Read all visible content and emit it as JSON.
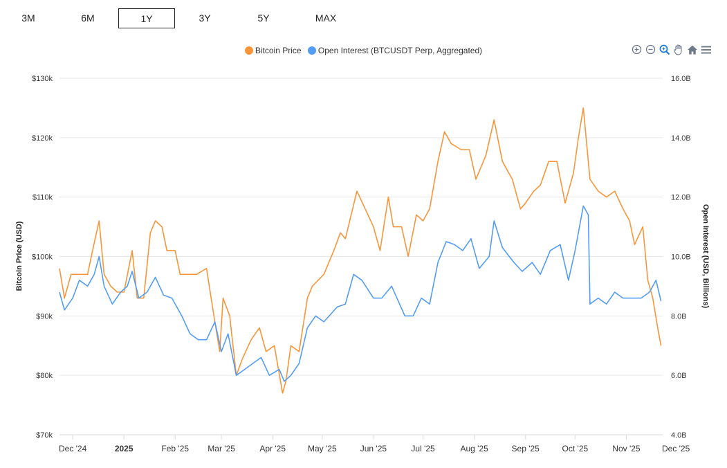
{
  "ranges": {
    "items": [
      "3M",
      "6M",
      "1Y",
      "3Y",
      "5Y",
      "MAX"
    ],
    "active": "1Y"
  },
  "toolbar": {
    "icons": [
      "zoom-in-icon",
      "zoom-out-icon",
      "zoom-select-icon",
      "pan-hand-icon",
      "home-reset-icon",
      "menu-icon"
    ]
  },
  "colors": {
    "price": "#F7953A",
    "oi": "#529CF5",
    "grid": "#e6e6e6"
  },
  "chart_data": {
    "type": "line",
    "legend_position": "top-center",
    "grid": true,
    "ylabel": "Bitcoin Price (USD)",
    "y2label": "Open Interest (USD, Billions)",
    "ylim": [
      70000,
      130000
    ],
    "y2lim": [
      4.0,
      16.0
    ],
    "yticks": [
      "$70k",
      "$80k",
      "$90k",
      "$100k",
      "$110k",
      "$120k",
      "$130k"
    ],
    "y2ticks": [
      "4.0B",
      "6.0B",
      "8.0B",
      "10.0B",
      "12.0B",
      "14.0B",
      "16.0B"
    ],
    "xticks": [
      {
        "date": "2024-12-01",
        "label": "Dec '24"
      },
      {
        "date": "2025-01-01",
        "label": "2025",
        "bold": true
      },
      {
        "date": "2025-02-01",
        "label": "Feb '25"
      },
      {
        "date": "2025-03-01",
        "label": "Mar '25"
      },
      {
        "date": "2025-04-01",
        "label": "Apr '25"
      },
      {
        "date": "2025-05-01",
        "label": "May '25"
      },
      {
        "date": "2025-06-01",
        "label": "Jun '25"
      },
      {
        "date": "2025-07-01",
        "label": "Jul '25"
      },
      {
        "date": "2025-08-01",
        "label": "Aug '25"
      },
      {
        "date": "2025-09-01",
        "label": "Sep '25"
      },
      {
        "date": "2025-10-01",
        "label": "Oct '25"
      },
      {
        "date": "2025-11-01",
        "label": "Nov '25"
      },
      {
        "date": "2025-12-01",
        "label": "Dec '25"
      }
    ],
    "xlim": [
      "2024-11-23",
      "2025-11-23"
    ],
    "series": [
      {
        "name": "Bitcoin Price",
        "axis": "left",
        "points": [
          [
            "2024-11-23",
            98000
          ],
          [
            "2024-11-26",
            93000
          ],
          [
            "2024-11-30",
            97000
          ],
          [
            "2024-12-05",
            97000
          ],
          [
            "2024-12-10",
            97000
          ],
          [
            "2024-12-13",
            101000
          ],
          [
            "2024-12-17",
            106000
          ],
          [
            "2024-12-20",
            97000
          ],
          [
            "2024-12-24",
            95000
          ],
          [
            "2024-12-28",
            94000
          ],
          [
            "2025-01-01",
            94000
          ],
          [
            "2025-01-06",
            101000
          ],
          [
            "2025-01-09",
            93000
          ],
          [
            "2025-01-13",
            93000
          ],
          [
            "2025-01-17",
            104000
          ],
          [
            "2025-01-20",
            106000
          ],
          [
            "2025-01-24",
            105000
          ],
          [
            "2025-01-27",
            101000
          ],
          [
            "2025-02-01",
            101000
          ],
          [
            "2025-02-04",
            97000
          ],
          [
            "2025-02-10",
            97000
          ],
          [
            "2025-02-14",
            97000
          ],
          [
            "2025-02-20",
            98000
          ],
          [
            "2025-02-25",
            89000
          ],
          [
            "2025-02-28",
            84000
          ],
          [
            "2025-03-02",
            93000
          ],
          [
            "2025-03-06",
            90000
          ],
          [
            "2025-03-10",
            80000
          ],
          [
            "2025-03-14",
            83000
          ],
          [
            "2025-03-19",
            86000
          ],
          [
            "2025-03-24",
            88000
          ],
          [
            "2025-03-28",
            84000
          ],
          [
            "2025-04-02",
            85000
          ],
          [
            "2025-04-07",
            77000
          ],
          [
            "2025-04-09",
            79000
          ],
          [
            "2025-04-12",
            85000
          ],
          [
            "2025-04-17",
            84000
          ],
          [
            "2025-04-22",
            93000
          ],
          [
            "2025-04-25",
            95000
          ],
          [
            "2025-05-02",
            97000
          ],
          [
            "2025-05-08",
            101000
          ],
          [
            "2025-05-12",
            104000
          ],
          [
            "2025-05-15",
            103000
          ],
          [
            "2025-05-22",
            111000
          ],
          [
            "2025-05-27",
            108000
          ],
          [
            "2025-06-01",
            105000
          ],
          [
            "2025-06-05",
            101000
          ],
          [
            "2025-06-10",
            110000
          ],
          [
            "2025-06-13",
            105000
          ],
          [
            "2025-06-18",
            105000
          ],
          [
            "2025-06-22",
            100000
          ],
          [
            "2025-06-27",
            107000
          ],
          [
            "2025-07-01",
            106000
          ],
          [
            "2025-07-05",
            108000
          ],
          [
            "2025-07-10",
            116000
          ],
          [
            "2025-07-14",
            121000
          ],
          [
            "2025-07-18",
            119000
          ],
          [
            "2025-07-24",
            118000
          ],
          [
            "2025-07-29",
            118000
          ],
          [
            "2025-08-02",
            113000
          ],
          [
            "2025-08-08",
            117000
          ],
          [
            "2025-08-13",
            123000
          ],
          [
            "2025-08-18",
            116000
          ],
          [
            "2025-08-24",
            113000
          ],
          [
            "2025-08-29",
            108000
          ],
          [
            "2025-09-01",
            109000
          ],
          [
            "2025-09-06",
            111000
          ],
          [
            "2025-09-10",
            112000
          ],
          [
            "2025-09-15",
            116000
          ],
          [
            "2025-09-20",
            116000
          ],
          [
            "2025-09-25",
            109000
          ],
          [
            "2025-09-30",
            114000
          ],
          [
            "2025-10-03",
            120000
          ],
          [
            "2025-10-06",
            125000
          ],
          [
            "2025-10-10",
            113000
          ],
          [
            "2025-10-15",
            111000
          ],
          [
            "2025-10-20",
            110000
          ],
          [
            "2025-10-25",
            111000
          ],
          [
            "2025-10-30",
            108000
          ],
          [
            "2025-11-03",
            106000
          ],
          [
            "2025-11-06",
            102000
          ],
          [
            "2025-11-11",
            105000
          ],
          [
            "2025-11-14",
            96000
          ],
          [
            "2025-11-17",
            93000
          ],
          [
            "2025-11-20",
            88000
          ],
          [
            "2025-11-22",
            85000
          ]
        ]
      },
      {
        "name": "Open Interest (BTCUSDT Perp, Aggregated)",
        "axis": "right",
        "points": [
          [
            "2024-11-23",
            8.8
          ],
          [
            "2024-11-26",
            8.2
          ],
          [
            "2024-12-01",
            8.6
          ],
          [
            "2024-12-05",
            9.2
          ],
          [
            "2024-12-10",
            9.0
          ],
          [
            "2024-12-14",
            9.4
          ],
          [
            "2024-12-17",
            10.0
          ],
          [
            "2024-12-20",
            9.0
          ],
          [
            "2024-12-25",
            8.4
          ],
          [
            "2024-12-30",
            8.8
          ],
          [
            "2025-01-03",
            9.0
          ],
          [
            "2025-01-06",
            9.5
          ],
          [
            "2025-01-10",
            8.6
          ],
          [
            "2025-01-15",
            8.8
          ],
          [
            "2025-01-20",
            9.3
          ],
          [
            "2025-01-25",
            8.7
          ],
          [
            "2025-01-30",
            8.6
          ],
          [
            "2025-02-05",
            8.0
          ],
          [
            "2025-02-10",
            7.4
          ],
          [
            "2025-02-15",
            7.2
          ],
          [
            "2025-02-20",
            7.2
          ],
          [
            "2025-02-25",
            7.8
          ],
          [
            "2025-03-01",
            6.8
          ],
          [
            "2025-03-05",
            7.4
          ],
          [
            "2025-03-10",
            6.0
          ],
          [
            "2025-03-15",
            6.2
          ],
          [
            "2025-03-20",
            6.4
          ],
          [
            "2025-03-25",
            6.6
          ],
          [
            "2025-03-30",
            6.0
          ],
          [
            "2025-04-05",
            6.2
          ],
          [
            "2025-04-08",
            5.8
          ],
          [
            "2025-04-12",
            6.0
          ],
          [
            "2025-04-17",
            6.4
          ],
          [
            "2025-04-22",
            7.6
          ],
          [
            "2025-04-27",
            8.0
          ],
          [
            "2025-05-02",
            7.8
          ],
          [
            "2025-05-10",
            8.3
          ],
          [
            "2025-05-15",
            8.4
          ],
          [
            "2025-05-20",
            9.4
          ],
          [
            "2025-05-25",
            9.2
          ],
          [
            "2025-06-01",
            8.6
          ],
          [
            "2025-06-06",
            8.6
          ],
          [
            "2025-06-12",
            9.0
          ],
          [
            "2025-06-20",
            8.0
          ],
          [
            "2025-06-25",
            8.0
          ],
          [
            "2025-06-30",
            8.6
          ],
          [
            "2025-07-05",
            8.4
          ],
          [
            "2025-07-10",
            9.8
          ],
          [
            "2025-07-15",
            10.5
          ],
          [
            "2025-07-20",
            10.4
          ],
          [
            "2025-07-25",
            10.2
          ],
          [
            "2025-07-30",
            10.6
          ],
          [
            "2025-08-04",
            9.6
          ],
          [
            "2025-08-10",
            10.0
          ],
          [
            "2025-08-13",
            11.2
          ],
          [
            "2025-08-18",
            10.3
          ],
          [
            "2025-08-25",
            9.8
          ],
          [
            "2025-08-30",
            9.5
          ],
          [
            "2025-09-05",
            9.8
          ],
          [
            "2025-09-10",
            9.4
          ],
          [
            "2025-09-16",
            10.2
          ],
          [
            "2025-09-22",
            10.4
          ],
          [
            "2025-09-27",
            9.2
          ],
          [
            "2025-10-01",
            10.2
          ],
          [
            "2025-10-06",
            11.7
          ],
          [
            "2025-10-09",
            11.4
          ],
          [
            "2025-10-10",
            8.4
          ],
          [
            "2025-10-15",
            8.6
          ],
          [
            "2025-10-20",
            8.4
          ],
          [
            "2025-10-25",
            8.8
          ],
          [
            "2025-10-30",
            8.6
          ],
          [
            "2025-11-05",
            8.6
          ],
          [
            "2025-11-10",
            8.6
          ],
          [
            "2025-11-15",
            8.8
          ],
          [
            "2025-11-19",
            9.2
          ],
          [
            "2025-11-22",
            8.5
          ]
        ]
      }
    ]
  }
}
